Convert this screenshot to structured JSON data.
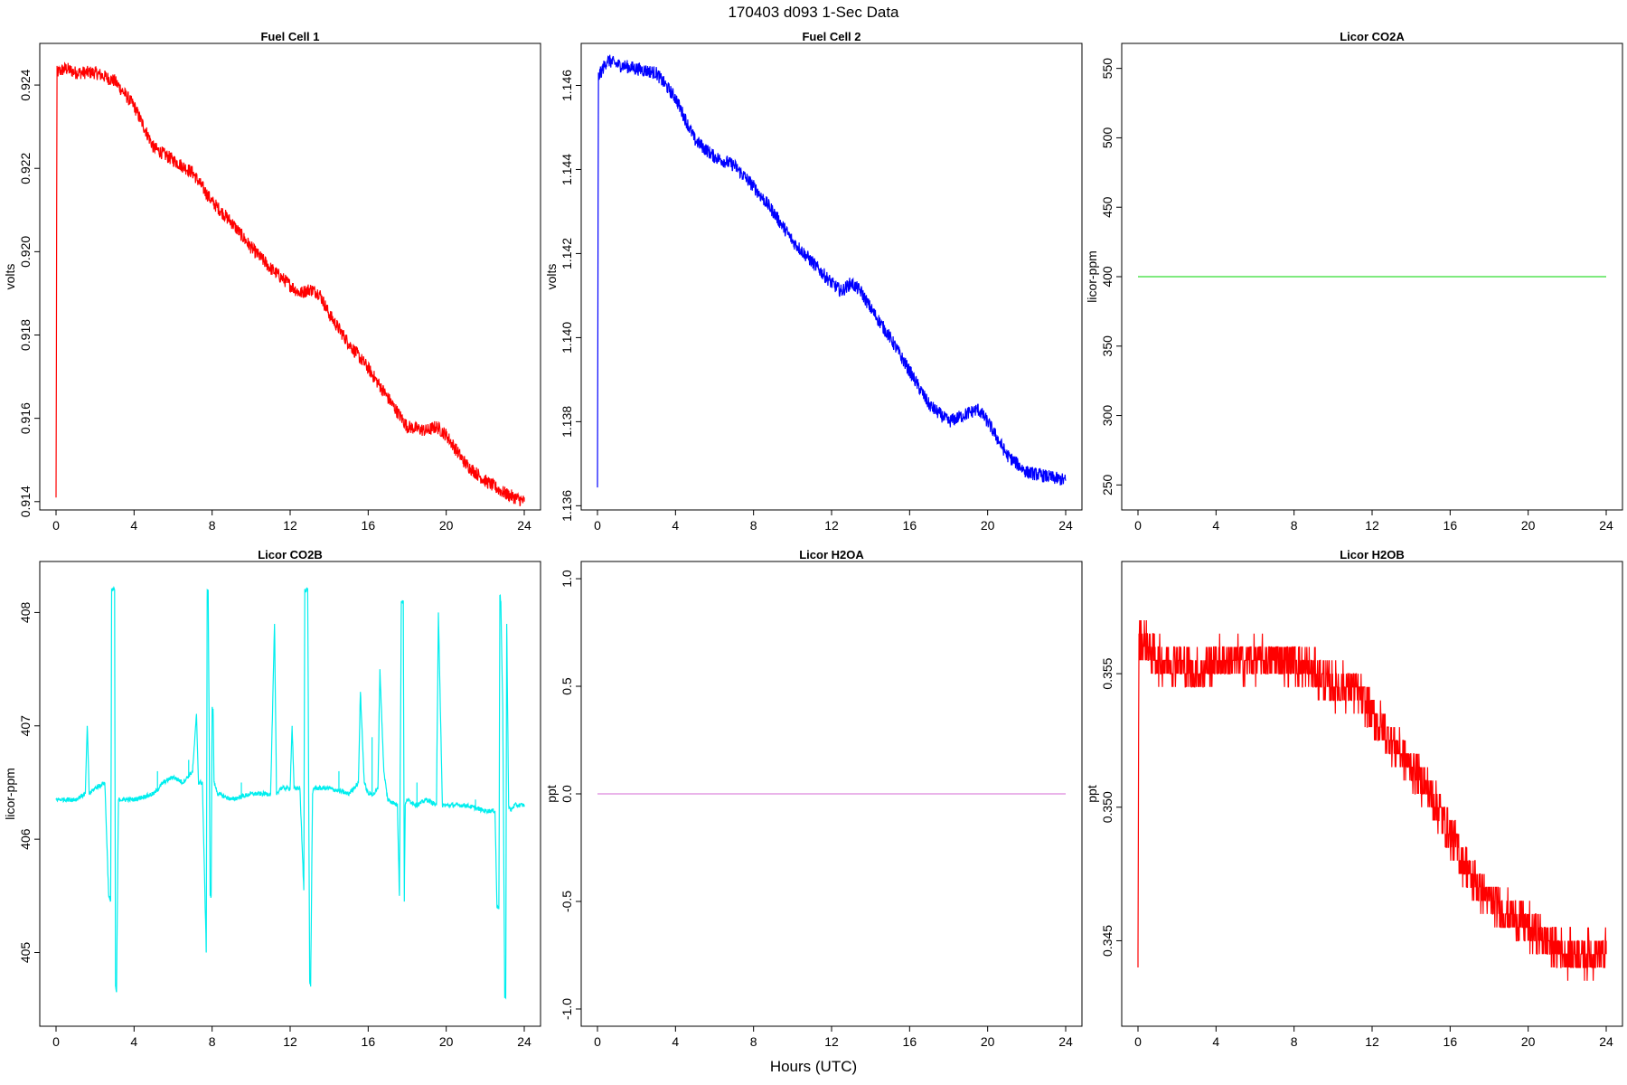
{
  "page": {
    "title": "170403   d093   1-Sec Data",
    "xlabel": "Hours (UTC)"
  },
  "chart_data": [
    {
      "type": "line",
      "title": "Fuel Cell 1",
      "xlabel": "",
      "ylabel": "volts",
      "xlim": [
        0,
        24
      ],
      "ylim": [
        0.9138,
        0.925
      ],
      "xticks": [
        0,
        4,
        8,
        12,
        16,
        20,
        24
      ],
      "yticks": [
        0.914,
        0.916,
        0.918,
        0.92,
        0.922,
        0.924
      ],
      "ytick_labels": [
        "0.914",
        "0.916",
        "0.918",
        "0.920",
        "0.922",
        "0.924"
      ],
      "color": "#ff0000",
      "noise": 0.00016,
      "x": [
        0,
        0.05,
        0.5,
        1,
        2,
        3,
        4,
        5,
        6,
        7,
        8,
        9,
        10,
        11,
        12,
        12.5,
        13,
        13.5,
        14,
        15,
        16,
        17,
        18,
        19,
        19.5,
        20,
        21,
        22,
        23,
        24
      ],
      "y": [
        0.9141,
        0.9243,
        0.9244,
        0.9243,
        0.9243,
        0.9241,
        0.9235,
        0.9225,
        0.9222,
        0.9219,
        0.9212,
        0.9207,
        0.9201,
        0.9196,
        0.9192,
        0.919,
        0.9191,
        0.919,
        0.9185,
        0.9178,
        0.9172,
        0.9165,
        0.9158,
        0.9157,
        0.9158,
        0.9156,
        0.9149,
        0.9145,
        0.9142,
        0.914
      ]
    },
    {
      "type": "line",
      "title": "Fuel Cell 2",
      "xlabel": "",
      "ylabel": "volts",
      "xlim": [
        0,
        24
      ],
      "ylim": [
        1.1359,
        1.147
      ],
      "xticks": [
        0,
        4,
        8,
        12,
        16,
        20,
        24
      ],
      "yticks": [
        1.136,
        1.138,
        1.14,
        1.142,
        1.144,
        1.146
      ],
      "ytick_labels": [
        "1.136",
        "1.138",
        "1.140",
        "1.142",
        "1.144",
        "1.146"
      ],
      "color": "#0000ff",
      "noise": 0.00016,
      "x": [
        0,
        0.05,
        0.5,
        1,
        2,
        3,
        4,
        5,
        6,
        7,
        8,
        9,
        10,
        11,
        12,
        12.5,
        13,
        13.5,
        14,
        15,
        16,
        17,
        18,
        19,
        19.5,
        20,
        21,
        22,
        23,
        24
      ],
      "y": [
        1.1365,
        1.1462,
        1.1466,
        1.1465,
        1.1464,
        1.1463,
        1.1457,
        1.1447,
        1.1443,
        1.1441,
        1.1436,
        1.143,
        1.1423,
        1.1418,
        1.1413,
        1.1411,
        1.1413,
        1.1411,
        1.1407,
        1.14,
        1.1392,
        1.1384,
        1.138,
        1.1382,
        1.1383,
        1.138,
        1.1372,
        1.1368,
        1.1367,
        1.1366
      ]
    },
    {
      "type": "line",
      "title": "Licor CO2A",
      "xlabel": "",
      "ylabel": "licor-ppm",
      "xlim": [
        0,
        24
      ],
      "ylim": [
        232,
        568
      ],
      "xticks": [
        0,
        4,
        8,
        12,
        16,
        20,
        24
      ],
      "yticks": [
        250,
        300,
        350,
        400,
        450,
        500,
        550
      ],
      "ytick_labels": [
        "250",
        "300",
        "350",
        "400",
        "450",
        "500",
        "550"
      ],
      "color": "#33dd33",
      "noise": 0,
      "x": [
        0,
        24
      ],
      "y": [
        400,
        400
      ]
    },
    {
      "type": "line",
      "title": "Licor CO2B",
      "xlabel": "",
      "ylabel": "licor-ppm",
      "xlim": [
        0,
        24
      ],
      "ylim": [
        404.35,
        408.45
      ],
      "xticks": [
        0,
        4,
        8,
        12,
        16,
        20,
        24
      ],
      "yticks": [
        405,
        406,
        407,
        408
      ],
      "ytick_labels": [
        "405",
        "406",
        "407",
        "408"
      ],
      "color": "#00eeee",
      "noise": 0.02,
      "x": [
        0,
        1,
        1.5,
        1.6,
        1.7,
        2.0,
        2.5,
        2.7,
        2.8,
        2.85,
        3.0,
        3.05,
        3.1,
        3.2,
        3.25,
        3.5,
        4,
        5,
        5.5,
        6,
        6.5,
        7,
        7.2,
        7.3,
        7.5,
        7.7,
        7.75,
        7.8,
        7.9,
        7.95,
        8.0,
        8.05,
        8.1,
        8.3,
        9,
        10,
        11,
        11.2,
        11.3,
        11.5,
        12,
        12.1,
        12.2,
        12.5,
        12.7,
        12.75,
        12.9,
        13.0,
        13.05,
        13.15,
        13.2,
        13.4,
        14,
        15,
        15.5,
        15.6,
        15.8,
        16,
        16.3,
        16.5,
        16.6,
        16.8,
        17.0,
        17.5,
        17.6,
        17.7,
        17.8,
        17.85,
        17.9,
        18.0,
        18.5,
        19,
        19.5,
        19.6,
        19.8,
        20,
        21,
        22,
        22.5,
        22.6,
        22.7,
        22.75,
        22.8,
        22.9,
        23.0,
        23.05,
        23.1,
        23.2,
        23.3,
        23.5,
        24
      ],
      "y": [
        406.35,
        406.35,
        406.4,
        407.0,
        406.4,
        406.45,
        406.5,
        405.5,
        405.45,
        408.2,
        408.2,
        404.7,
        404.65,
        406.35,
        406.35,
        406.35,
        406.35,
        406.4,
        406.5,
        406.55,
        406.5,
        406.6,
        407.1,
        406.5,
        406.5,
        405.0,
        408.2,
        408.2,
        405.5,
        405.5,
        407.15,
        407.15,
        406.5,
        406.4,
        406.35,
        406.4,
        406.4,
        407.9,
        406.4,
        406.45,
        406.45,
        407.0,
        406.45,
        406.45,
        405.55,
        408.2,
        408.2,
        404.75,
        404.7,
        406.4,
        406.45,
        406.45,
        406.45,
        406.4,
        406.5,
        407.3,
        406.5,
        406.4,
        406.4,
        406.45,
        407.5,
        406.6,
        406.35,
        406.3,
        405.5,
        408.1,
        408.1,
        405.45,
        406.3,
        406.35,
        406.3,
        406.35,
        406.3,
        408.0,
        406.3,
        406.3,
        406.3,
        406.25,
        406.25,
        405.4,
        405.4,
        408.15,
        408.1,
        407.1,
        404.6,
        404.6,
        407.9,
        406.3,
        406.25,
        406.3,
        406.3
      ],
      "extra_spikes": [
        [
          5.2,
          406.6
        ],
        [
          6.8,
          406.7
        ],
        [
          9.5,
          406.5
        ],
        [
          14.5,
          406.6
        ],
        [
          16.2,
          406.9
        ],
        [
          18.5,
          406.5
        ],
        [
          21.5,
          406.35
        ]
      ]
    },
    {
      "type": "line",
      "title": "Licor H2OA",
      "xlabel": "",
      "ylabel": "ppt",
      "xlim": [
        0,
        24
      ],
      "ylim": [
        -1.08,
        1.08
      ],
      "xticks": [
        0,
        4,
        8,
        12,
        16,
        20,
        24
      ],
      "yticks": [
        -1.0,
        -0.5,
        0.0,
        0.5,
        1.0
      ],
      "ytick_labels": [
        "-1.0",
        "-0.5",
        "0.0",
        "0.5",
        "1.0"
      ],
      "color": "#dd88dd",
      "noise": 0,
      "x": [
        0,
        24
      ],
      "y": [
        0,
        0
      ]
    },
    {
      "type": "line",
      "title": "Licor H2OB",
      "xlabel": "",
      "ylabel": "ppt",
      "xlim": [
        0,
        24
      ],
      "ylim": [
        0.3418,
        0.3592
      ],
      "xticks": [
        0,
        4,
        8,
        12,
        16,
        20,
        24
      ],
      "yticks": [
        0.345,
        0.35,
        0.355
      ],
      "ytick_labels": [
        "0.345",
        "0.350",
        "0.355"
      ],
      "color": "#ff0000",
      "noise": 0.0008,
      "step": 0.0005,
      "x": [
        0,
        0.05,
        0.5,
        1,
        2,
        3,
        4,
        5,
        6,
        7,
        8,
        9,
        10,
        11,
        12,
        13,
        14,
        15,
        16,
        17,
        18,
        19,
        20,
        21,
        22,
        23,
        24
      ],
      "y": [
        0.3445,
        0.3565,
        0.356,
        0.3555,
        0.3555,
        0.355,
        0.3555,
        0.3555,
        0.3555,
        0.3555,
        0.3555,
        0.355,
        0.3545,
        0.3545,
        0.3535,
        0.3525,
        0.3515,
        0.3505,
        0.349,
        0.3475,
        0.3465,
        0.346,
        0.3455,
        0.345,
        0.3445,
        0.3445,
        0.3445
      ]
    }
  ]
}
